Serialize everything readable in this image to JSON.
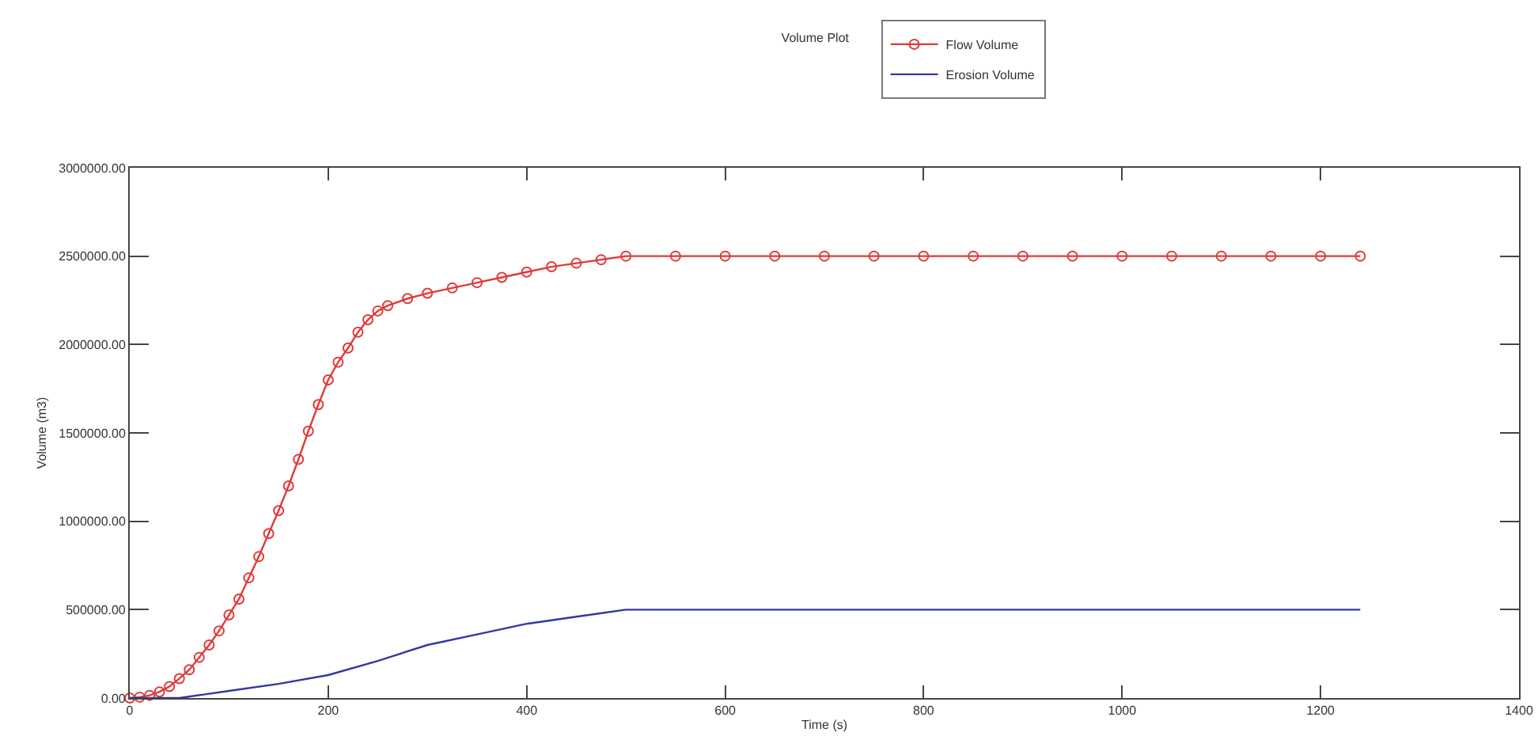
{
  "chart_data": {
    "type": "line",
    "title": "Volume Plot",
    "xlabel": "Time (s)",
    "ylabel": "Volume (m3)",
    "xlim": [
      0,
      1400
    ],
    "xticks": [
      0,
      200,
      400,
      600,
      800,
      1000,
      1200,
      1400
    ],
    "ylim": [
      0,
      3000000
    ],
    "yticks": [
      {
        "value": 0,
        "label": "0.00"
      },
      {
        "value": 500000,
        "label": "500000.00"
      },
      {
        "value": 1000000,
        "label": "1000000.00"
      },
      {
        "value": 1500000,
        "label": "1500000.00"
      },
      {
        "value": 2000000,
        "label": "2000000.00"
      },
      {
        "value": 2500000,
        "label": "2500000.00"
      },
      {
        "value": 3000000,
        "label": "3000000.00"
      }
    ],
    "grid": false,
    "legend": "top",
    "line_style": "solid",
    "series": [
      {
        "name": "Flow Volume",
        "color": "#e03a3a",
        "marker": "circle",
        "x": [
          0,
          10,
          20,
          30,
          40,
          50,
          60,
          70,
          80,
          90,
          100,
          110,
          120,
          130,
          140,
          150,
          160,
          170,
          180,
          190,
          200,
          210,
          220,
          230,
          240,
          250,
          260,
          280,
          300,
          325,
          350,
          375,
          400,
          425,
          450,
          475,
          500,
          550,
          600,
          650,
          700,
          750,
          800,
          850,
          900,
          950,
          1000,
          1050,
          1100,
          1150,
          1200,
          1240
        ],
        "values": [
          0,
          5000,
          15000,
          35000,
          65000,
          110000,
          160000,
          230000,
          300000,
          380000,
          470000,
          560000,
          680000,
          800000,
          930000,
          1060000,
          1200000,
          1350000,
          1510000,
          1660000,
          1800000,
          1900000,
          1980000,
          2070000,
          2140000,
          2190000,
          2220000,
          2260000,
          2290000,
          2320000,
          2350000,
          2380000,
          2410000,
          2440000,
          2460000,
          2480000,
          2500000,
          2500000,
          2500000,
          2500000,
          2500000,
          2500000,
          2500000,
          2500000,
          2500000,
          2500000,
          2500000,
          2500000,
          2500000,
          2500000,
          2500000,
          2500000
        ]
      },
      {
        "name": "Erosion Volume",
        "color": "#3535a5",
        "marker": "none",
        "x": [
          0,
          50,
          100,
          150,
          200,
          250,
          300,
          350,
          400,
          450,
          500,
          1240
        ],
        "values": [
          0,
          0,
          40000,
          80000,
          130000,
          210000,
          300000,
          360000,
          420000,
          460000,
          500000,
          500000
        ]
      }
    ]
  }
}
